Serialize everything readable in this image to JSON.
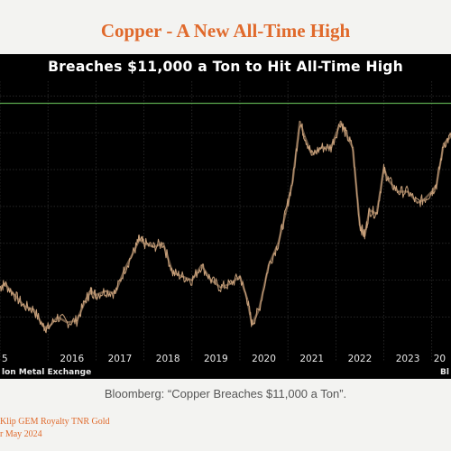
{
  "slide": {
    "title": "Copper - A New All-Time High",
    "caption": "Bloomberg: “Copper Breaches $11,000 a Ton”.",
    "footer_line1": "Klip GEM Royalty TNR Gold",
    "footer_line2": "r May 2024"
  },
  "chart_data": {
    "type": "line",
    "title": "Breaches $11,000 a Ton to Hit All-Time High",
    "source": "lon Metal Exchange",
    "brand": "Bl",
    "xlabel": "",
    "ylabel": "",
    "x_ticks": [
      "5",
      "2016",
      "2017",
      "2018",
      "2019",
      "2020",
      "2021",
      "2022",
      "2023",
      "20"
    ],
    "x_range": [
      2015.0,
      2024.4
    ],
    "y_range": [
      4300,
      11400
    ],
    "reference_line": {
      "value": 10800,
      "color": "#5aa84e"
    },
    "series_color": "#c8a07a",
    "grid": true,
    "x": [
      2015.0,
      2015.1,
      2015.3,
      2015.5,
      2015.7,
      2015.9,
      2016.0,
      2016.2,
      2016.4,
      2016.6,
      2016.8,
      2016.9,
      2017.0,
      2017.2,
      2017.4,
      2017.6,
      2017.8,
      2017.9,
      2018.0,
      2018.2,
      2018.4,
      2018.6,
      2018.8,
      2019.0,
      2019.2,
      2019.4,
      2019.6,
      2019.8,
      2020.0,
      2020.15,
      2020.25,
      2020.4,
      2020.6,
      2020.8,
      2020.95,
      2021.1,
      2021.25,
      2021.35,
      2021.5,
      2021.7,
      2021.9,
      2022.1,
      2022.2,
      2022.35,
      2022.5,
      2022.6,
      2022.7,
      2022.85,
      2023.0,
      2023.1,
      2023.3,
      2023.5,
      2023.7,
      2023.85,
      2024.0,
      2024.1,
      2024.25,
      2024.4
    ],
    "y": [
      5800,
      5900,
      5600,
      5300,
      5200,
      4750,
      4700,
      5000,
      4850,
      4900,
      5500,
      5700,
      5600,
      5700,
      5650,
      6300,
      6800,
      7100,
      7000,
      6900,
      7000,
      6200,
      6100,
      6000,
      6400,
      6000,
      5800,
      5900,
      6100,
      5500,
      4800,
      5200,
      6400,
      7000,
      7800,
      8700,
      10300,
      9900,
      9400,
      9600,
      9600,
      10300,
      10000,
      9600,
      7500,
      7200,
      7900,
      7800,
      9000,
      8700,
      8400,
      8400,
      8100,
      8200,
      8400,
      8600,
      9700,
      9900
    ]
  }
}
